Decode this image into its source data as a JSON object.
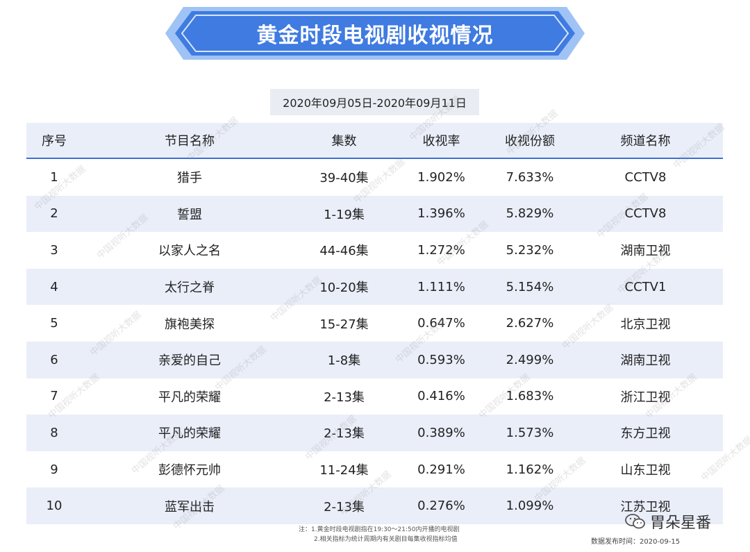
{
  "header": {
    "title": "黄金时段电视剧收视情况"
  },
  "date_range": "2020年09月05日-2020年09月11日",
  "table": {
    "columns": [
      "序号",
      "节目名称",
      "集数",
      "收视率",
      "收视份额",
      "频道名称"
    ],
    "rows": [
      {
        "rank": "1",
        "name": "猎手",
        "episodes": "39-40集",
        "rating": "1.902%",
        "share": "7.633%",
        "channel": "CCTV8"
      },
      {
        "rank": "2",
        "name": "誓盟",
        "episodes": "1-19集",
        "rating": "1.396%",
        "share": "5.829%",
        "channel": "CCTV8"
      },
      {
        "rank": "3",
        "name": "以家人之名",
        "episodes": "44-46集",
        "rating": "1.272%",
        "share": "5.232%",
        "channel": "湖南卫视"
      },
      {
        "rank": "4",
        "name": "太行之脊",
        "episodes": "10-20集",
        "rating": "1.111%",
        "share": "5.154%",
        "channel": "CCTV1"
      },
      {
        "rank": "5",
        "name": "旗袍美探",
        "episodes": "15-27集",
        "rating": "0.647%",
        "share": "2.627%",
        "channel": "北京卫视"
      },
      {
        "rank": "6",
        "name": "亲爱的自己",
        "episodes": "1-8集",
        "rating": "0.593%",
        "share": "2.499%",
        "channel": "湖南卫视"
      },
      {
        "rank": "7",
        "name": "平凡的荣耀",
        "episodes": "2-13集",
        "rating": "0.416%",
        "share": "1.683%",
        "channel": "浙江卫视"
      },
      {
        "rank": "8",
        "name": "平凡的荣耀",
        "episodes": "2-13集",
        "rating": "0.389%",
        "share": "1.573%",
        "channel": "东方卫视"
      },
      {
        "rank": "9",
        "name": "彭德怀元帅",
        "episodes": "11-24集",
        "rating": "0.291%",
        "share": "1.162%",
        "channel": "山东卫视"
      },
      {
        "rank": "10",
        "name": "蓝军出击",
        "episodes": "2-13集",
        "rating": "0.276%",
        "share": "1.099%",
        "channel": "江苏卫视"
      }
    ]
  },
  "watermark_text": "中国视听大数据",
  "notes": [
    "注：1.黄金时段电视剧指在19:30～21:50内开播的电视剧",
    "2.相关指标为统计周期内有关剧目每集收视指标均值"
  ],
  "release": "数据发布时间：2020-09-15",
  "brand": {
    "name": "胃朵星番",
    "icon": "wechat-icon"
  },
  "colors": {
    "banner_blue": "#3f7be0",
    "header_bg": "#e9eef9",
    "header_line": "#3d6fd1"
  }
}
